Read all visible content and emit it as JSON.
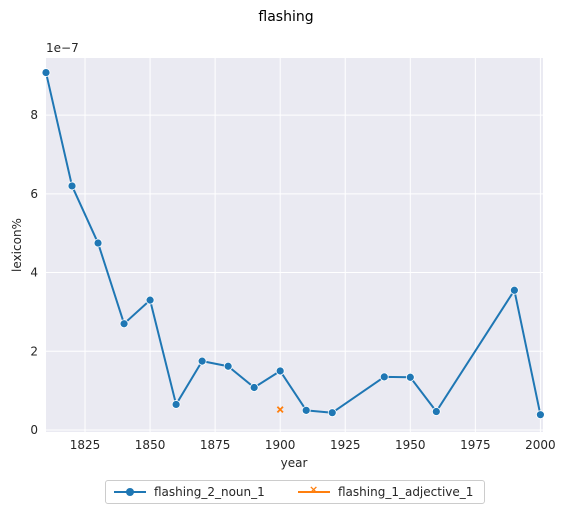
{
  "chart_data": {
    "type": "line",
    "title": "flashing",
    "xlabel": "year",
    "ylabel": "lexicon%",
    "offset_text": "1e−7",
    "xlim": [
      1810,
      2001
    ],
    "ylim": [
      -0.05,
      9.45
    ],
    "x_ticks": [
      1825,
      1850,
      1875,
      1900,
      1925,
      1950,
      1975,
      2000
    ],
    "y_ticks": [
      0,
      2,
      4,
      6,
      8
    ],
    "grid": true,
    "legend_position": "bottom-center",
    "series": [
      {
        "name": "flashing_2_noun_1",
        "color": "#1f77b4",
        "marker": "circle",
        "x": [
          1810,
          1820,
          1830,
          1840,
          1850,
          1860,
          1870,
          1880,
          1890,
          1900,
          1910,
          1920,
          1940,
          1950,
          1960,
          1990,
          2000
        ],
        "y": [
          9.08,
          6.2,
          4.75,
          2.7,
          3.3,
          0.65,
          1.75,
          1.62,
          1.08,
          1.5,
          0.5,
          0.44,
          1.35,
          1.34,
          0.47,
          3.55,
          0.39
        ]
      },
      {
        "name": "flashing_1_adjective_1",
        "color": "#ff7f0e",
        "marker": "x",
        "x": [
          1900
        ],
        "y": [
          0.52
        ]
      }
    ]
  }
}
